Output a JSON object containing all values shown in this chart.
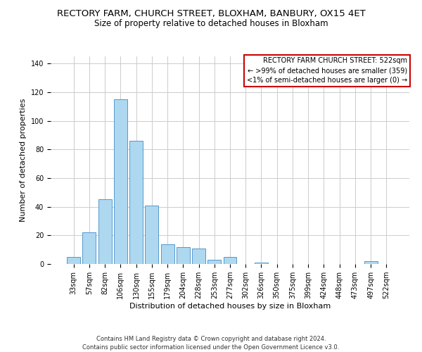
{
  "title": "RECTORY FARM, CHURCH STREET, BLOXHAM, BANBURY, OX15 4ET",
  "subtitle": "Size of property relative to detached houses in Bloxham",
  "xlabel": "Distribution of detached houses by size in Bloxham",
  "ylabel": "Number of detached properties",
  "bar_labels": [
    "33sqm",
    "57sqm",
    "82sqm",
    "106sqm",
    "130sqm",
    "155sqm",
    "179sqm",
    "204sqm",
    "228sqm",
    "253sqm",
    "277sqm",
    "302sqm",
    "326sqm",
    "350sqm",
    "375sqm",
    "399sqm",
    "424sqm",
    "448sqm",
    "473sqm",
    "497sqm",
    "522sqm"
  ],
  "bar_values": [
    5,
    22,
    45,
    115,
    86,
    41,
    14,
    12,
    11,
    3,
    5,
    0,
    1,
    0,
    0,
    0,
    0,
    0,
    0,
    2,
    0
  ],
  "bar_color": "#add8f0",
  "bar_edge_color": "#5599cc",
  "ylim": [
    0,
    145
  ],
  "yticks": [
    0,
    20,
    40,
    60,
    80,
    100,
    120,
    140
  ],
  "grid_color": "#cccccc",
  "background_color": "#ffffff",
  "annotation_box_edge_color": "#cc0000",
  "annotation_lines": [
    "RECTORY FARM CHURCH STREET: 522sqm",
    "← >99% of detached houses are smaller (359)",
    "<1% of semi-detached houses are larger (0) →"
  ],
  "footer_lines": [
    "Contains HM Land Registry data © Crown copyright and database right 2024.",
    "Contains public sector information licensed under the Open Government Licence v3.0."
  ],
  "title_fontsize": 9.5,
  "subtitle_fontsize": 8.5,
  "axis_label_fontsize": 8,
  "tick_fontsize": 7,
  "annotation_fontsize": 7,
  "footer_fontsize": 6
}
